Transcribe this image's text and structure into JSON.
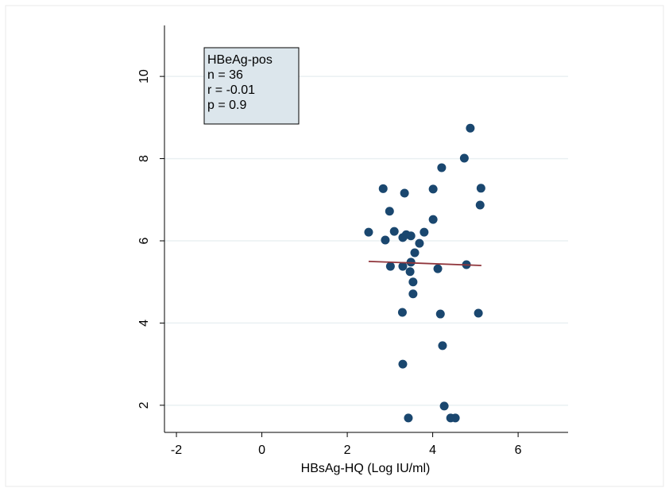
{
  "chart_data": {
    "type": "scatter",
    "x_label": "HBsAg-HQ (Log IU/ml)",
    "annotation": [
      "HBeAg-pos",
      "n = 36",
      "r = -0.01",
      "p = 0.9"
    ],
    "x": [
      2.5,
      2.84,
      2.89,
      2.99,
      3.01,
      3.1,
      3.29,
      3.3,
      3.3,
      3.3,
      3.34,
      3.38,
      3.43,
      3.47,
      3.49,
      3.49,
      3.54,
      3.54,
      3.58,
      3.69,
      3.8,
      4.01,
      4.01,
      4.12,
      4.18,
      4.21,
      4.23,
      4.27,
      4.42,
      4.53,
      4.74,
      4.79,
      4.88,
      5.07,
      5.11,
      5.13
    ],
    "values": [
      6.21,
      7.27,
      6.02,
      6.72,
      5.38,
      6.23,
      4.26,
      3.0,
      5.38,
      6.08,
      7.16,
      6.15,
      1.69,
      5.25,
      6.12,
      5.48,
      5.0,
      4.71,
      5.71,
      5.94,
      6.21,
      7.26,
      6.52,
      5.32,
      4.22,
      7.78,
      3.45,
      1.98,
      1.69,
      1.69,
      8.01,
      5.42,
      8.74,
      4.24,
      6.87,
      7.28
    ],
    "color": "#1a476f",
    "fit_line": {
      "x": [
        2.5,
        5.14
      ],
      "y": [
        5.5,
        5.4
      ],
      "color": "#90353b"
    },
    "xlim": [
      -2.28,
      7.17
    ],
    "xticks": [
      -2,
      0,
      2,
      4,
      6
    ],
    "ylim": [
      1.34,
      11.24
    ],
    "yticks": [
      2,
      4,
      6,
      8,
      10
    ],
    "grid": true
  }
}
